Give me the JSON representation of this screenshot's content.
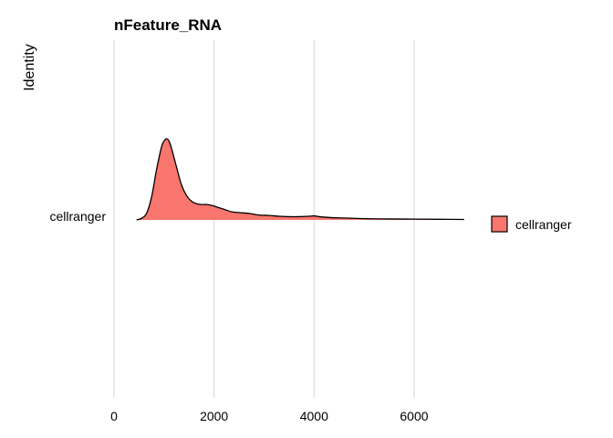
{
  "chart_data": {
    "type": "area",
    "subtype": "ridgeline-density",
    "title": "nFeature_RNA",
    "xlabel": "",
    "ylabel": "Identity",
    "xlim": [
      0,
      7000
    ],
    "xticks": [
      0,
      2000,
      4000,
      6000
    ],
    "xtick_labels": [
      "0",
      "2000",
      "4000",
      "6000"
    ],
    "categories": [
      "cellranger"
    ],
    "grid": "vertical major lines",
    "legend": {
      "position": "right",
      "entries": [
        "cellranger"
      ]
    },
    "colors": {
      "fill": "#F8766D",
      "outline": "#000000",
      "grid": "#d9d9d9"
    },
    "series": [
      {
        "name": "cellranger",
        "x": [
          450,
          550,
          650,
          750,
          850,
          950,
          1000,
          1050,
          1100,
          1150,
          1250,
          1350,
          1450,
          1550,
          1650,
          1750,
          1850,
          1950,
          2050,
          2150,
          2250,
          2350,
          2500,
          2700,
          2900,
          3100,
          3300,
          3500,
          3700,
          3900,
          4000,
          4100,
          4300,
          4500,
          4800,
          5000,
          5500,
          6000,
          6500,
          7000
        ],
        "density": [
          0.0,
          0.02,
          0.08,
          0.28,
          0.62,
          0.9,
          0.97,
          1.0,
          0.97,
          0.88,
          0.65,
          0.43,
          0.3,
          0.23,
          0.2,
          0.19,
          0.19,
          0.18,
          0.16,
          0.14,
          0.12,
          0.1,
          0.09,
          0.08,
          0.06,
          0.055,
          0.045,
          0.04,
          0.04,
          0.045,
          0.05,
          0.04,
          0.03,
          0.025,
          0.02,
          0.015,
          0.012,
          0.01,
          0.008,
          0.006
        ]
      }
    ]
  }
}
